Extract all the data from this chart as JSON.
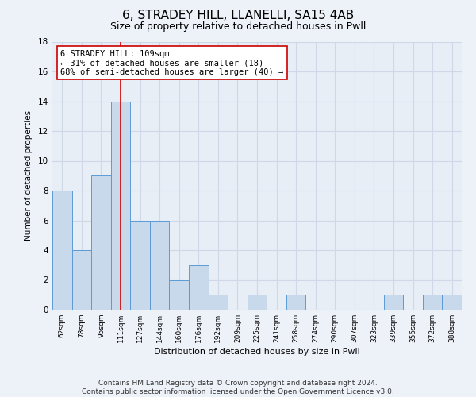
{
  "title": "6, STRADEY HILL, LLANELLI, SA15 4AB",
  "subtitle": "Size of property relative to detached houses in Pwll",
  "xlabel": "Distribution of detached houses by size in Pwll",
  "ylabel": "Number of detached properties",
  "categories": [
    "62sqm",
    "78sqm",
    "95sqm",
    "111sqm",
    "127sqm",
    "144sqm",
    "160sqm",
    "176sqm",
    "192sqm",
    "209sqm",
    "225sqm",
    "241sqm",
    "258sqm",
    "274sqm",
    "290sqm",
    "307sqm",
    "323sqm",
    "339sqm",
    "355sqm",
    "372sqm",
    "388sqm"
  ],
  "values": [
    8,
    4,
    9,
    14,
    6,
    6,
    2,
    3,
    1,
    0,
    1,
    0,
    1,
    0,
    0,
    0,
    0,
    1,
    0,
    1,
    1
  ],
  "bar_color": "#c9d9ec",
  "bar_edge_color": "#5b9bd5",
  "vline_index": 3,
  "vline_color": "#cc0000",
  "annotation_line1": "6 STRADEY HILL: 109sqm",
  "annotation_line2": "← 31% of detached houses are smaller (18)",
  "annotation_line3": "68% of semi-detached houses are larger (40) →",
  "annotation_box_color": "#ffffff",
  "annotation_box_edge": "#cc0000",
  "ylim": [
    0,
    18
  ],
  "yticks": [
    0,
    2,
    4,
    6,
    8,
    10,
    12,
    14,
    16,
    18
  ],
  "footer": "Contains HM Land Registry data © Crown copyright and database right 2024.\nContains public sector information licensed under the Open Government Licence v3.0.",
  "background_color": "#edf1f8",
  "plot_background": "#e8eef6",
  "grid_color": "#d0d8e8",
  "title_fontsize": 11,
  "subtitle_fontsize": 9,
  "footer_fontsize": 6.5,
  "annotation_fontsize": 7.5
}
